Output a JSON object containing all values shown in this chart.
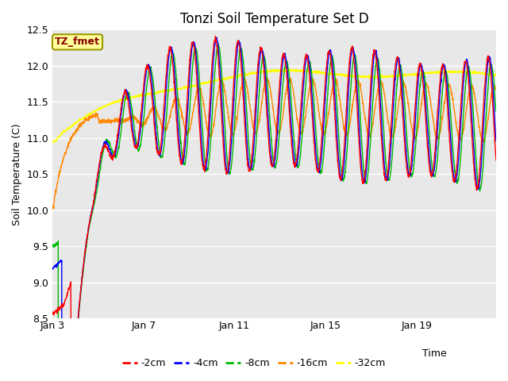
{
  "title": "Tonzi Soil Temperature Set D",
  "xlabel": "Time",
  "ylabel": "Soil Temperature (C)",
  "ylim": [
    8.5,
    12.5
  ],
  "xlim_days": [
    0,
    19.5
  ],
  "x_tick_positions": [
    0,
    4,
    8,
    12,
    16
  ],
  "x_tick_labels": [
    "Jan 3",
    "Jan 7",
    "Jan 11",
    "Jan 15",
    "Jan 19"
  ],
  "yticks": [
    8.5,
    9.0,
    9.5,
    10.0,
    10.5,
    11.0,
    11.5,
    12.0,
    12.5
  ],
  "bg_color": "#e8e8e8",
  "fig_color": "#ffffff",
  "colors": {
    "-2cm": "#ff0000",
    "-4cm": "#0000ff",
    "-8cm": "#00bb00",
    "-16cm": "#ff8800",
    "-32cm": "#ffff00"
  },
  "legend_label": "TZ_fmet",
  "legend_bg": "#ffff99",
  "legend_border": "#999900",
  "n_points": 2000
}
